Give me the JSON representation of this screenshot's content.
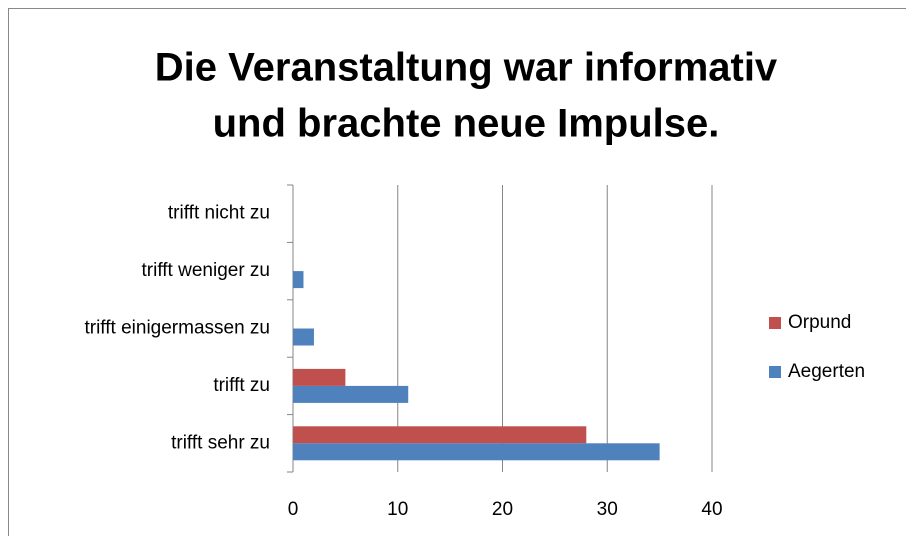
{
  "chart_data": {
    "type": "bar",
    "orientation": "horizontal",
    "title": [
      "Die Veranstaltung war informativ",
      "und brachte neue Impulse."
    ],
    "categories": [
      "trifft sehr zu",
      "trifft zu",
      "trifft einigermassen zu",
      "trifft weniger zu",
      "trifft nicht zu"
    ],
    "series": [
      {
        "name": "Orpund",
        "color": "#c0504d",
        "values": [
          28,
          5,
          0,
          0,
          0
        ]
      },
      {
        "name": "Aegerten",
        "color": "#4f81bd",
        "values": [
          35,
          11,
          2,
          1,
          0
        ]
      }
    ],
    "xlim": [
      0,
      40
    ],
    "xticks": [
      0,
      10,
      20,
      30,
      40
    ],
    "grid": true,
    "legend": "right"
  }
}
